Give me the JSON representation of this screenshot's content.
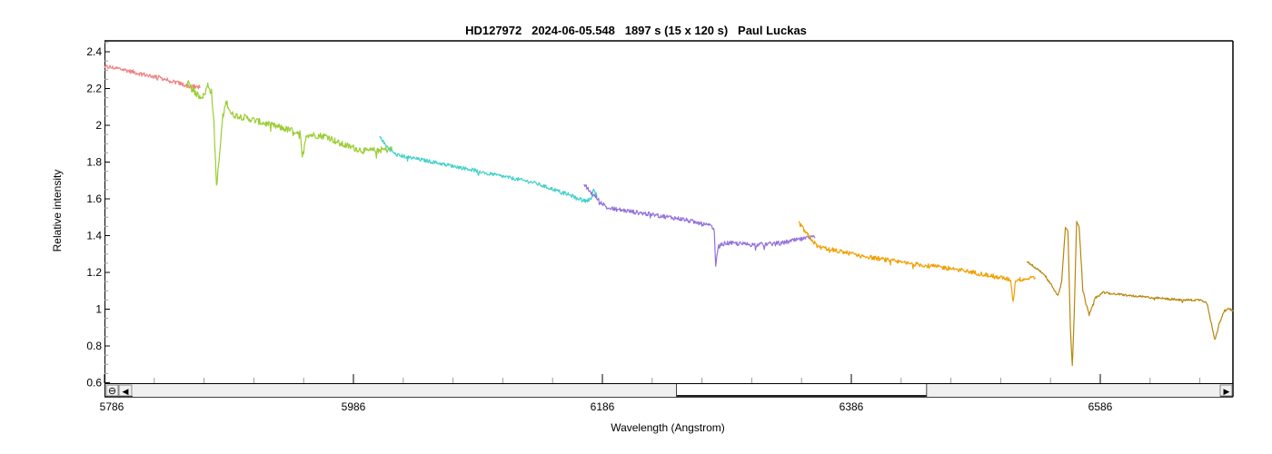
{
  "chart_data": {
    "type": "line",
    "title": "HD127972   2024-06-05.548   1897 s (15 x 120 s)   Paul Luckas",
    "xlabel": "Wavelength (Angstrom)",
    "ylabel": "Relative intensity",
    "xlim": [
      5786,
      6693
    ],
    "ylim": [
      0.6,
      2.45
    ],
    "xticks": [
      5786,
      5986,
      6186,
      6386,
      6586
    ],
    "xtick_labels": [
      "5786",
      "5986",
      "6186",
      "6386",
      "6586"
    ],
    "yticks": [
      0.6,
      0.8,
      1,
      1.2,
      1.4,
      1.6,
      1.8,
      2,
      2.2,
      2.4
    ],
    "ytick_labels": [
      "0.6",
      "0.8",
      "1",
      "1.2",
      "1.4",
      "1.6",
      "1.8",
      "2",
      "2.2",
      "2.4"
    ],
    "x_minor_step": 40,
    "y_minor_step": 0.05,
    "grid": false,
    "legend": "none",
    "series": [
      {
        "name": "segment-1",
        "color": "#f08080",
        "noise": 0.012,
        "points": [
          [
            5786,
            2.32
          ],
          [
            5800,
            2.305
          ],
          [
            5815,
            2.28
          ],
          [
            5830,
            2.26
          ],
          [
            5845,
            2.23
          ],
          [
            5855,
            2.21
          ],
          [
            5863,
            2.21
          ]
        ]
      },
      {
        "name": "segment-2",
        "color": "#9acd32",
        "noise": 0.018,
        "points": [
          [
            5852,
            2.24
          ],
          [
            5857,
            2.19
          ],
          [
            5862,
            2.16
          ],
          [
            5866,
            2.16
          ],
          [
            5869,
            2.22
          ],
          [
            5872,
            2.18
          ],
          [
            5874,
            2.0
          ],
          [
            5876,
            1.67
          ],
          [
            5878,
            1.8
          ],
          [
            5881,
            2.05
          ],
          [
            5884,
            2.13
          ],
          [
            5888,
            2.06
          ],
          [
            5900,
            2.04
          ],
          [
            5920,
            2.0
          ],
          [
            5943,
            1.96
          ],
          [
            5945,
            1.82
          ],
          [
            5948,
            1.95
          ],
          [
            5965,
            1.94
          ],
          [
            5975,
            1.9
          ],
          [
            5995,
            1.86
          ],
          [
            6017,
            1.87
          ]
        ]
      },
      {
        "name": "segment-3",
        "color": "#40d0c8",
        "noise": 0.01,
        "points": [
          [
            6007,
            1.94
          ],
          [
            6012,
            1.89
          ],
          [
            6020,
            1.84
          ],
          [
            6050,
            1.8
          ],
          [
            6080,
            1.76
          ],
          [
            6100,
            1.73
          ],
          [
            6130,
            1.69
          ],
          [
            6160,
            1.62
          ],
          [
            6172,
            1.59
          ],
          [
            6177,
            1.6
          ],
          [
            6179,
            1.65
          ],
          [
            6182,
            1.61
          ]
        ]
      },
      {
        "name": "segment-4",
        "color": "#9370db",
        "noise": 0.012,
        "points": [
          [
            6171,
            1.68
          ],
          [
            6176,
            1.64
          ],
          [
            6182,
            1.6
          ],
          [
            6190,
            1.55
          ],
          [
            6220,
            1.52
          ],
          [
            6250,
            1.49
          ],
          [
            6274,
            1.45
          ],
          [
            6276,
            1.42
          ],
          [
            6277,
            1.24
          ],
          [
            6279,
            1.34
          ],
          [
            6285,
            1.36
          ],
          [
            6310,
            1.35
          ],
          [
            6330,
            1.36
          ],
          [
            6345,
            1.38
          ],
          [
            6357,
            1.39
          ]
        ]
      },
      {
        "name": "segment-5",
        "color": "#f0a000",
        "noise": 0.012,
        "points": [
          [
            6344,
            1.47
          ],
          [
            6350,
            1.41
          ],
          [
            6359,
            1.34
          ],
          [
            6380,
            1.31
          ],
          [
            6403,
            1.28
          ],
          [
            6430,
            1.25
          ],
          [
            6468,
            1.22
          ],
          [
            6500,
            1.18
          ],
          [
            6514,
            1.16
          ],
          [
            6516,
            1.04
          ],
          [
            6518,
            1.16
          ],
          [
            6534,
            1.17
          ]
        ]
      },
      {
        "name": "segment-6",
        "color": "#b8860b",
        "noise": 0.006,
        "points": [
          [
            6527,
            1.26
          ],
          [
            6535,
            1.22
          ],
          [
            6541,
            1.19
          ],
          [
            6547,
            1.13
          ],
          [
            6552,
            1.07
          ],
          [
            6555,
            1.15
          ],
          [
            6558,
            1.45
          ],
          [
            6560,
            1.42
          ],
          [
            6562,
            0.9
          ],
          [
            6563.5,
            0.69
          ],
          [
            6565,
            0.95
          ],
          [
            6567,
            1.48
          ],
          [
            6569,
            1.45
          ],
          [
            6572,
            1.1
          ],
          [
            6577,
            0.97
          ],
          [
            6582,
            1.06
          ],
          [
            6588,
            1.09
          ],
          [
            6615,
            1.07
          ],
          [
            6650,
            1.05
          ],
          [
            6668,
            1.05
          ],
          [
            6672,
            1.03
          ],
          [
            6678,
            0.83
          ],
          [
            6682,
            0.93
          ],
          [
            6686,
            1.0
          ],
          [
            6690,
            1.0
          ],
          [
            6693,
            0.99
          ]
        ]
      }
    ]
  },
  "scrollbar": {
    "zoom_out_icon": "⊖",
    "left_arrow_icon": "◀",
    "right_arrow_icon": "▶",
    "thumb_start_fraction": 0.5,
    "thumb_end_fraction": 0.73
  }
}
